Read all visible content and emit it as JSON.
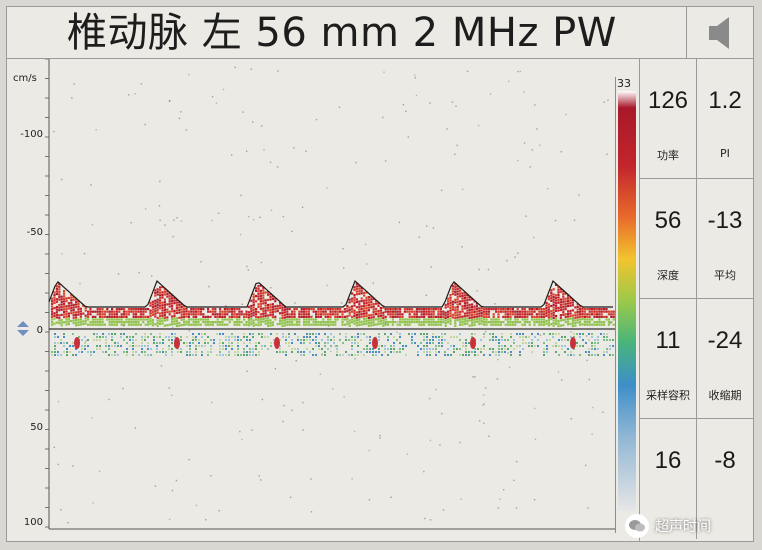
{
  "header": {
    "title": "椎动脉 左 56 mm 2 MHz PW"
  },
  "icons": {
    "speaker": "speaker-icon",
    "baseline_marker": "baseline-arrows-icon"
  },
  "spectrum": {
    "unit_label": "cm/s",
    "ticks": [
      "-100",
      "-50",
      "0",
      "50",
      "100"
    ],
    "colorbar_label": "33"
  },
  "params": [
    {
      "value": "126",
      "label": "功率"
    },
    {
      "value": "1.2",
      "label": "PI"
    },
    {
      "value": "56",
      "label": "深度"
    },
    {
      "value": "-13",
      "label": "平均"
    },
    {
      "value": "11",
      "label": "采样容积"
    },
    {
      "value": "-24",
      "label": "收缩期"
    },
    {
      "value": "16",
      "label": ""
    },
    {
      "value": "-8",
      "label": ""
    }
  ],
  "watermark": {
    "text": "超声时间"
  },
  "colors": {
    "background": "#eceae4",
    "spectrum_high": "#b5202a",
    "spectrum_low": "#2f7fc1"
  }
}
